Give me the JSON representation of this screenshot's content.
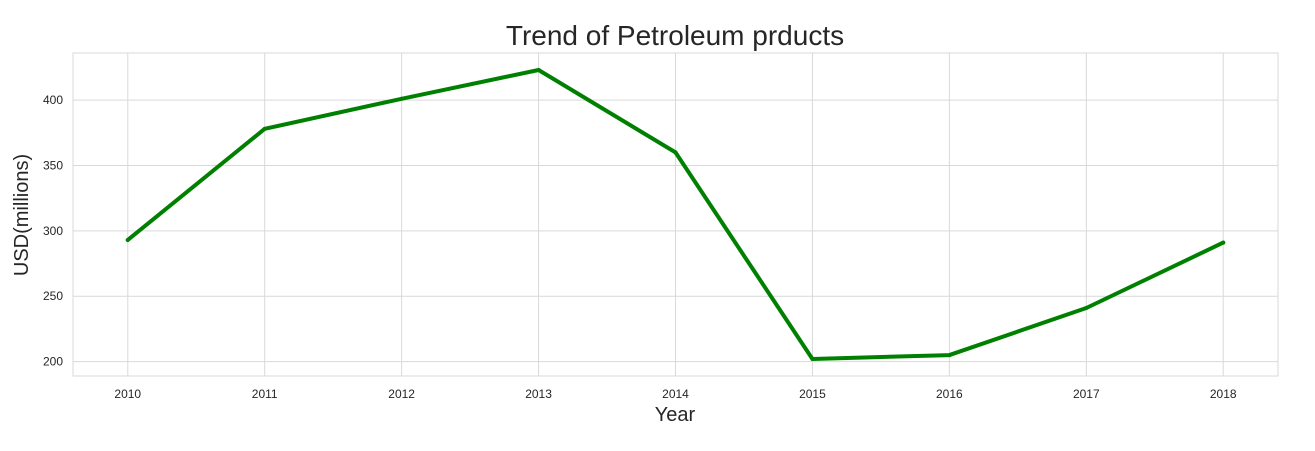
{
  "chart_data": {
    "type": "line",
    "title": "Trend of Petroleum prducts",
    "xlabel": "Year",
    "ylabel": "USD(millions)",
    "x": [
      2010,
      2011,
      2012,
      2013,
      2014,
      2015,
      2016,
      2017,
      2018
    ],
    "series": [
      {
        "name": "",
        "values": [
          293,
          378,
          401,
          423,
          360,
          202,
          205,
          241,
          291
        ],
        "color": "#008000"
      }
    ],
    "xlim": [
      2009.6,
      2018.4
    ],
    "ylim": [
      189,
      436
    ],
    "yticks": [
      200,
      250,
      300,
      350,
      400
    ],
    "grid": true,
    "legend": "none"
  }
}
